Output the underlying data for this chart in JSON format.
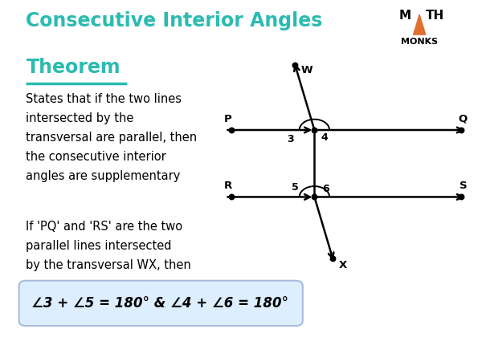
{
  "title_line1": "Consecutive Interior Angles",
  "title_line2": "Theorem",
  "title_color": "#2bbbb0",
  "underline_color": "#2bbbb0",
  "body_text1_lines": [
    "States that if the two lines",
    "intersected by the",
    "transversal are parallel, then",
    "the consecutive interior",
    "angles are supplementary"
  ],
  "body_text2_lines": [
    "If 'PQ' and 'RS' are the two",
    "parallel lines intersected",
    "by the transversal WX, then"
  ],
  "formula_text": "∠3 + ∠5 = 180° & ∠4 + ∠6 = 180°",
  "formula_box_color": "#ddeeff",
  "formula_border_color": "#aabbdd",
  "bg_color": "#ffffff",
  "text_color": "#000000",
  "diagram": {
    "line_color": "#000000",
    "dot_color": "#000000",
    "angle_arc_color": "#000000"
  },
  "logo_triangle_color": "#e07030"
}
